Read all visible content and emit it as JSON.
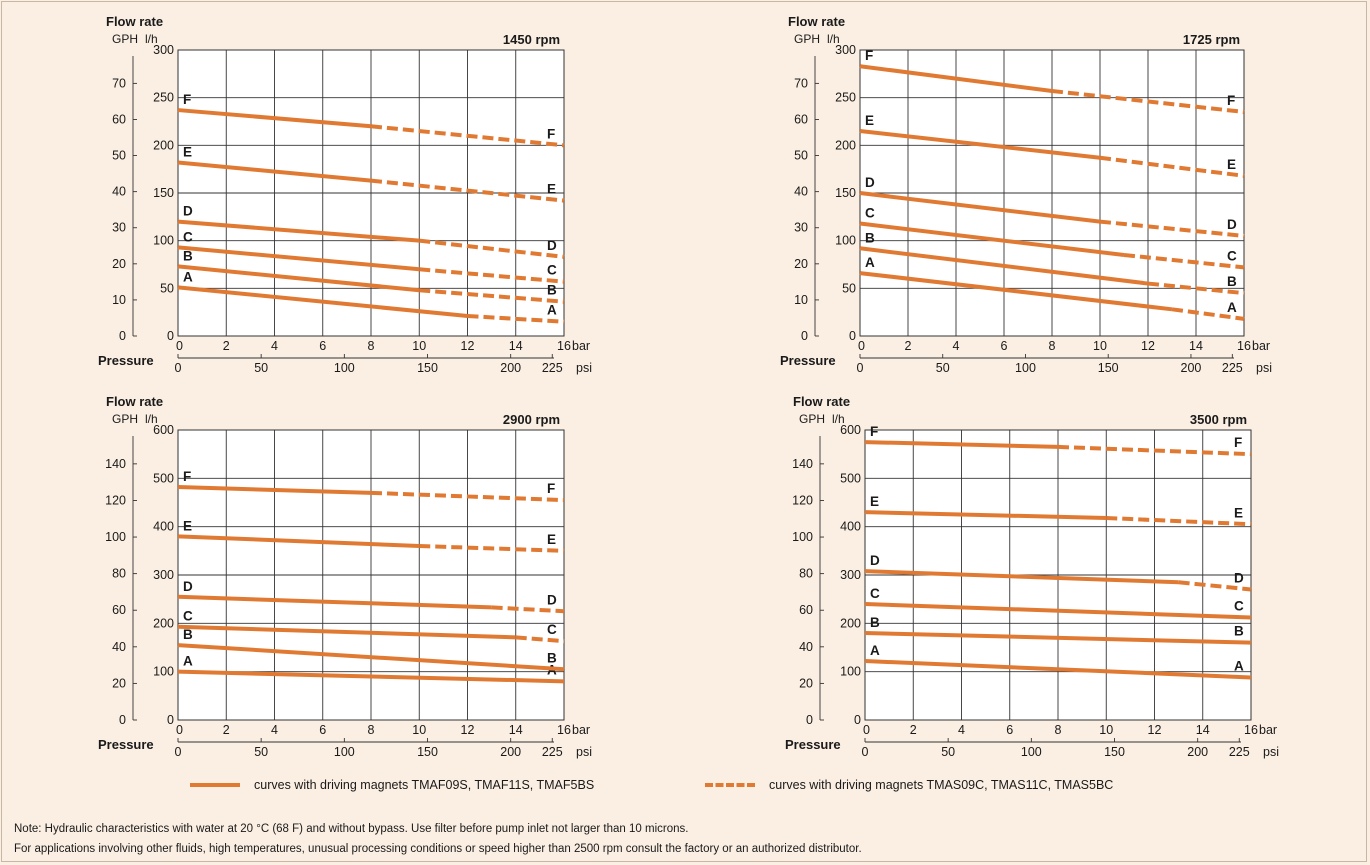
{
  "labels": {
    "flow_rate": "Flow rate",
    "gph": "GPH",
    "lh": "l/h",
    "pressure": "Pressure",
    "bar": "bar",
    "psi": "psi"
  },
  "colors": {
    "curve": "#e07a33",
    "grid": "#333333",
    "plot_bg": "#ffffff",
    "background": "#fbefe3"
  },
  "legend": {
    "solid": "curves with driving magnets TMAF09S, TMAF11S, TMAF5BS",
    "dashed": "curves with driving magnets TMAS09C, TMAS11C, TMAS5BC"
  },
  "notes": {
    "line1": "Note: Hydraulic characteristics with water at 20 °C (68 F) and without bypass. Use filter before pump inlet not larger than 10 microns.",
    "line2": "For applications involving other fluids, high temperatures, unusual processing conditions or speed higher than 2500 rpm consult the factory or an authorized distributor."
  },
  "chart_data": [
    {
      "type": "line",
      "title": "1450 rpm",
      "xlabel": "Pressure",
      "x_unit": "bar",
      "x_secondary_unit": "psi",
      "ylabel": "Flow rate",
      "y_unit": "l/h",
      "y_secondary_unit": "GPH",
      "xlim": [
        0,
        16
      ],
      "ylim": [
        0,
        300
      ],
      "x_ticks": [
        0,
        2,
        4,
        6,
        8,
        10,
        12,
        14,
        16
      ],
      "y_ticks": [
        0,
        50,
        100,
        150,
        200,
        250,
        300
      ],
      "psi_ticks": [
        "0",
        "50",
        "100",
        "150",
        "200",
        "225"
      ],
      "psi_tick_bar": [
        0,
        3.447,
        6.895,
        10.342,
        13.79,
        15.513
      ],
      "gph_ticks": [
        "0",
        "10",
        "20",
        "30",
        "40",
        "50",
        "60",
        "70"
      ],
      "gph_per_lh": 0.26417,
      "grid": true,
      "series": [
        {
          "name": "A",
          "x": [
            0,
            12,
            16
          ],
          "y": [
            51,
            21,
            15
          ]
        },
        {
          "name": "B",
          "x": [
            0,
            10,
            16
          ],
          "y": [
            73,
            48,
            36
          ]
        },
        {
          "name": "C",
          "x": [
            0,
            10,
            16
          ],
          "y": [
            93,
            70,
            57
          ]
        },
        {
          "name": "D",
          "x": [
            0,
            10,
            16
          ],
          "y": [
            120,
            100,
            83
          ]
        },
        {
          "name": "E",
          "x": [
            0,
            8,
            16
          ],
          "y": [
            182,
            163,
            142
          ]
        },
        {
          "name": "F",
          "x": [
            0,
            8,
            16
          ],
          "y": [
            237,
            220,
            200
          ]
        }
      ]
    },
    {
      "type": "line",
      "title": "1725 rpm",
      "xlabel": "Pressure",
      "x_unit": "bar",
      "x_secondary_unit": "psi",
      "ylabel": "Flow rate",
      "y_unit": "l/h",
      "y_secondary_unit": "GPH",
      "xlim": [
        0,
        16
      ],
      "ylim": [
        0,
        300
      ],
      "x_ticks": [
        0,
        2,
        4,
        6,
        8,
        10,
        12,
        14,
        16
      ],
      "y_ticks": [
        0,
        50,
        100,
        150,
        200,
        250,
        300
      ],
      "psi_ticks": [
        "0",
        "50",
        "100",
        "150",
        "200",
        "225"
      ],
      "psi_tick_bar": [
        0,
        3.447,
        6.895,
        10.342,
        13.79,
        15.513
      ],
      "gph_ticks": [
        "0",
        "10",
        "20",
        "30",
        "40",
        "50",
        "60",
        "70"
      ],
      "gph_per_lh": 0.26417,
      "grid": true,
      "series": [
        {
          "name": "A",
          "x": [
            0,
            13,
            16
          ],
          "y": [
            66,
            28,
            18
          ]
        },
        {
          "name": "B",
          "x": [
            0,
            12,
            16
          ],
          "y": [
            92,
            55,
            45
          ]
        },
        {
          "name": "C",
          "x": [
            0,
            11,
            16
          ],
          "y": [
            118,
            85,
            72
          ]
        },
        {
          "name": "D",
          "x": [
            0,
            10,
            16
          ],
          "y": [
            150,
            120,
            105
          ]
        },
        {
          "name": "E",
          "x": [
            0,
            10,
            16
          ],
          "y": [
            215,
            187,
            168
          ]
        },
        {
          "name": "F",
          "x": [
            0,
            8,
            16
          ],
          "y": [
            283,
            257,
            235
          ]
        }
      ]
    },
    {
      "type": "line",
      "title": "2900 rpm",
      "xlabel": "Pressure",
      "x_unit": "bar",
      "x_secondary_unit": "psi",
      "ylabel": "Flow rate",
      "y_unit": "l/h",
      "y_secondary_unit": "GPH",
      "xlim": [
        0,
        16
      ],
      "ylim": [
        0,
        600
      ],
      "x_ticks": [
        0,
        2,
        4,
        6,
        8,
        10,
        12,
        14,
        16
      ],
      "y_ticks": [
        0,
        100,
        200,
        300,
        400,
        500,
        600
      ],
      "psi_ticks": [
        "0",
        "50",
        "100",
        "150",
        "200",
        "225"
      ],
      "psi_tick_bar": [
        0,
        3.447,
        6.895,
        10.342,
        13.79,
        15.513
      ],
      "gph_ticks": [
        "0",
        "20",
        "40",
        "60",
        "80",
        "100",
        "120",
        "140"
      ],
      "gph_per_lh": 0.26417,
      "grid": true,
      "series": [
        {
          "name": "A",
          "x": [
            0,
            16
          ],
          "y": [
            100,
            80
          ]
        },
        {
          "name": "B",
          "x": [
            0,
            16
          ],
          "y": [
            155,
            105
          ]
        },
        {
          "name": "C",
          "x": [
            0,
            14,
            16
          ],
          "y": [
            193,
            171,
            163
          ]
        },
        {
          "name": "D",
          "x": [
            0,
            13,
            16
          ],
          "y": [
            255,
            233,
            225
          ]
        },
        {
          "name": "E",
          "x": [
            0,
            10,
            16
          ],
          "y": [
            380,
            360,
            350
          ]
        },
        {
          "name": "F",
          "x": [
            0,
            8,
            16
          ],
          "y": [
            482,
            470,
            455
          ]
        }
      ]
    },
    {
      "type": "line",
      "title": "3500 rpm",
      "xlabel": "Pressure",
      "x_unit": "bar",
      "x_secondary_unit": "psi",
      "ylabel": "Flow rate",
      "y_unit": "l/h",
      "y_secondary_unit": "GPH",
      "xlim": [
        0,
        16
      ],
      "ylim": [
        0,
        600
      ],
      "x_ticks": [
        0,
        2,
        4,
        6,
        8,
        10,
        12,
        14,
        16
      ],
      "y_ticks": [
        0,
        100,
        200,
        300,
        400,
        500,
        600
      ],
      "psi_ticks": [
        "0",
        "50",
        "100",
        "150",
        "200",
        "225"
      ],
      "psi_tick_bar": [
        0,
        3.447,
        6.895,
        10.342,
        13.79,
        15.513
      ],
      "gph_ticks": [
        "0",
        "20",
        "40",
        "60",
        "80",
        "100",
        "120",
        "140"
      ],
      "gph_per_lh": 0.26417,
      "grid": true,
      "series": [
        {
          "name": "A",
          "x": [
            0,
            16
          ],
          "y": [
            122,
            88
          ]
        },
        {
          "name": "B",
          "x": [
            0,
            16
          ],
          "y": [
            180,
            160
          ]
        },
        {
          "name": "C",
          "x": [
            0,
            16
          ],
          "y": [
            240,
            212
          ]
        },
        {
          "name": "D",
          "x": [
            0,
            13,
            16
          ],
          "y": [
            308,
            285,
            270
          ]
        },
        {
          "name": "E",
          "x": [
            0,
            10,
            16
          ],
          "y": [
            430,
            418,
            405
          ]
        },
        {
          "name": "F",
          "x": [
            0,
            8,
            16
          ],
          "y": [
            575,
            565,
            550
          ]
        }
      ]
    }
  ]
}
